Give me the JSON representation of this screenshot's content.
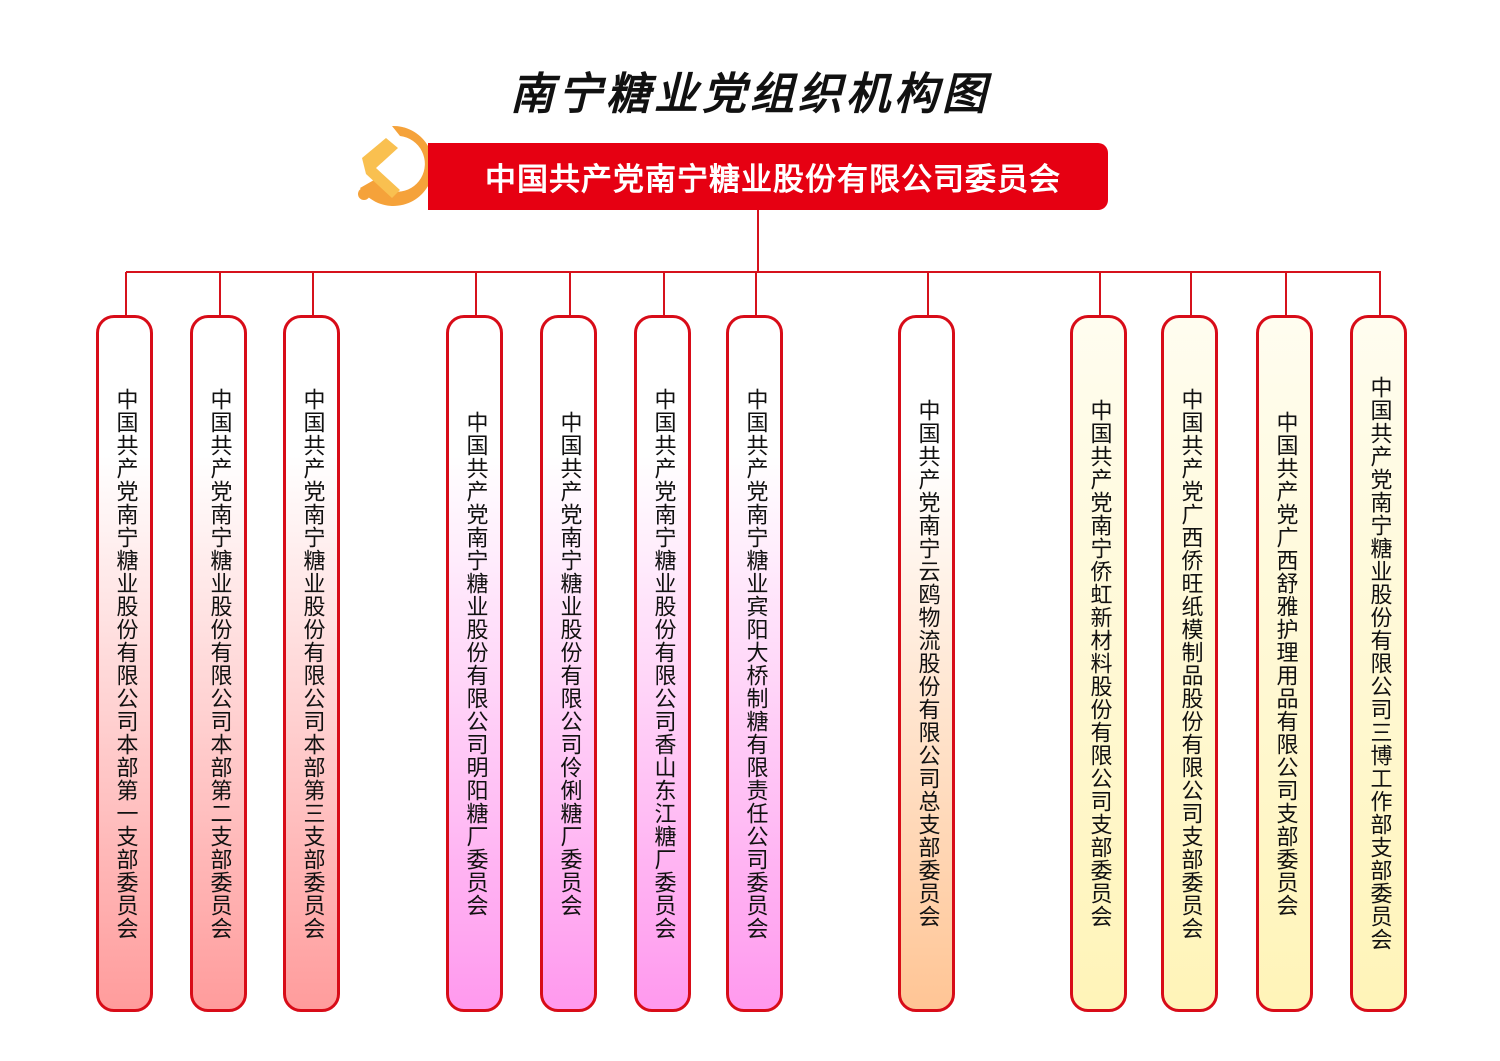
{
  "title": "南宁糖业党组织机构图",
  "root": {
    "label": "中国共产党南宁糖业股份有限公司委员会",
    "color": "#e60012",
    "icon": "party-emblem-icon"
  },
  "branches": [
    {
      "label": "中国共产党南宁糖业股份有限公司本部第一支部委员会",
      "group": "headquarters",
      "color": "#ff9c9c"
    },
    {
      "label": "中国共产党南宁糖业股份有限公司本部第二支部委员会",
      "group": "headquarters",
      "color": "#ff9c9c"
    },
    {
      "label": "中国共产党南宁糖业股份有限公司本部第三支部委员会",
      "group": "headquarters",
      "color": "#ff9c9c"
    },
    {
      "label": "中国共产党南宁糖业股份有限公司明阳糖厂委员会",
      "group": "sugar-mills",
      "color": "#ff99ee"
    },
    {
      "label": "中国共产党南宁糖业股份有限公司伶俐糖厂委员会",
      "group": "sugar-mills",
      "color": "#ff99ee"
    },
    {
      "label": "中国共产党南宁糖业股份有限公司香山东江糖厂委员会",
      "group": "sugar-mills",
      "color": "#ff99ee"
    },
    {
      "label": "中国共产党南宁糖业宾阳大桥制糖有限责任公司委员会",
      "group": "sugar-mills",
      "color": "#ff99ee"
    },
    {
      "label": "中国共产党南宁云鸥物流股份有限公司总支部委员会",
      "group": "logistics",
      "color": "#ffc595"
    },
    {
      "label": "中国共产党南宁侨虹新材料股份有限公司支部委员会",
      "group": "subsidiaries",
      "color": "#fff4b8"
    },
    {
      "label": "中国共产党广西侨旺纸模制品股份有限公司支部委员会",
      "group": "subsidiaries",
      "color": "#fff4b8"
    },
    {
      "label": "中国共产党广西舒雅护理用品有限公司支部委员会",
      "group": "subsidiaries",
      "color": "#fff4b8"
    },
    {
      "label": "中国共产党南宁糖业股份有限公司三博工作部支部委员会",
      "group": "subsidiaries",
      "color": "#fff4b8"
    }
  ]
}
